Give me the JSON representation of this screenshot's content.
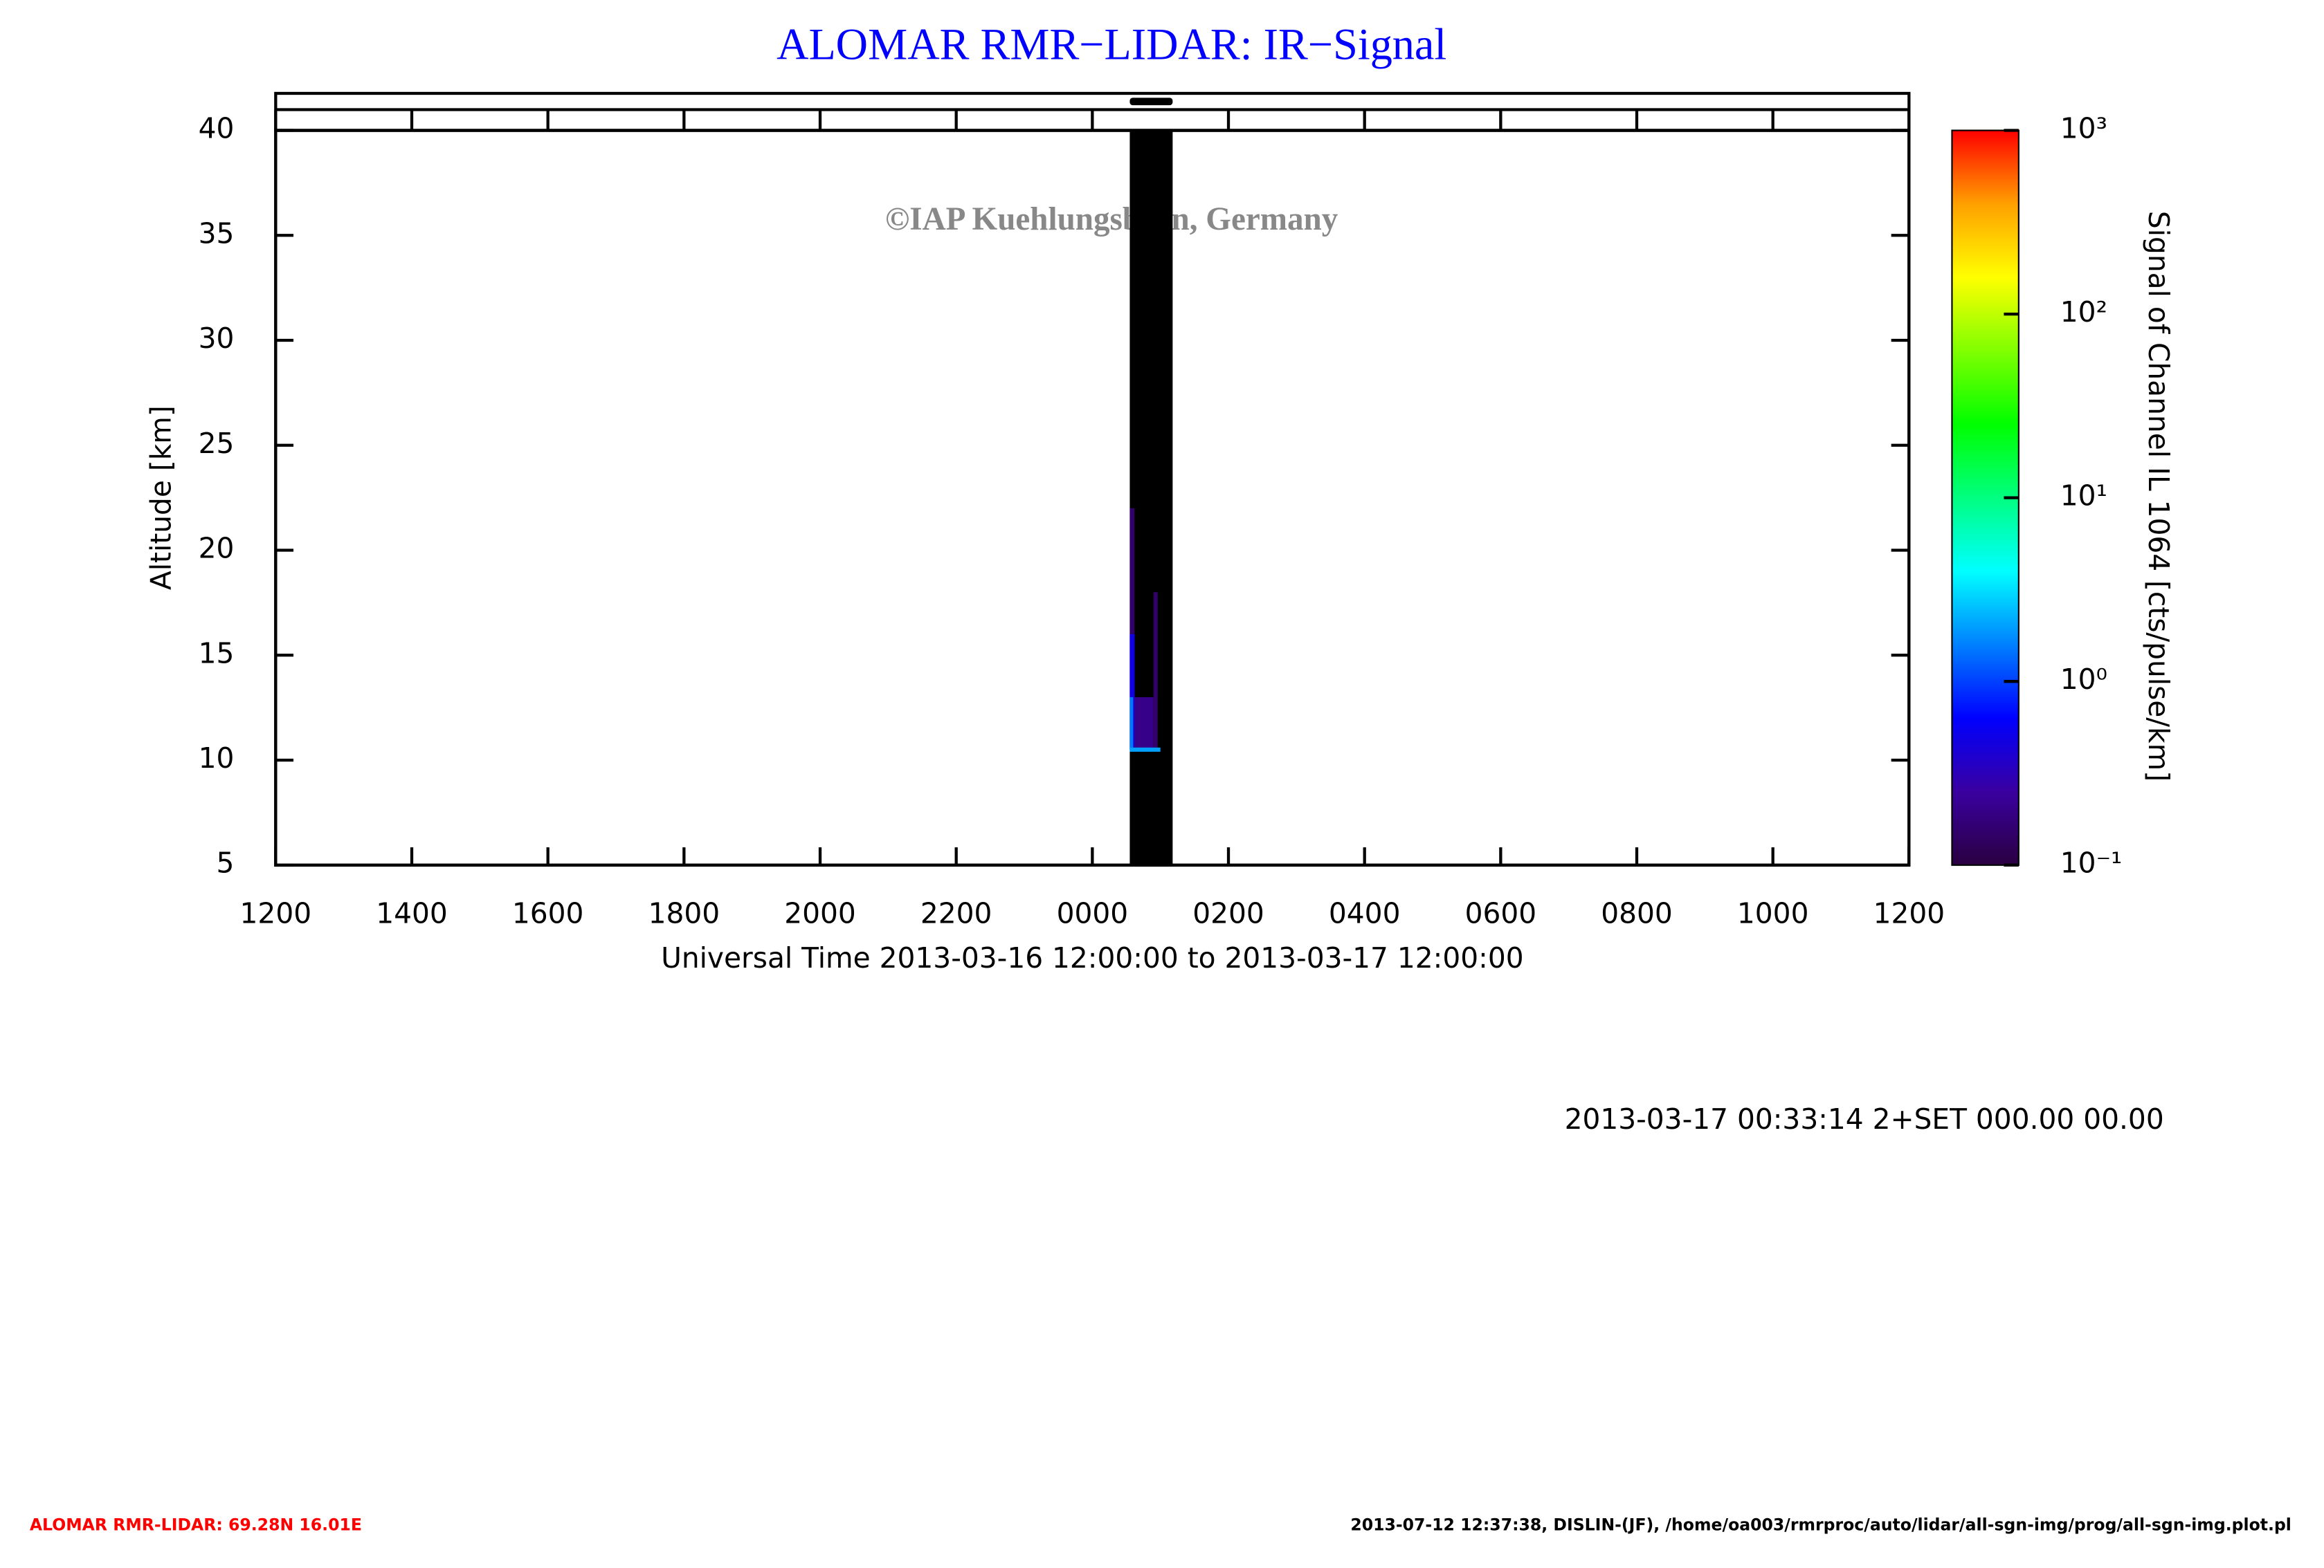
{
  "chart_data": {
    "type": "heatmap",
    "title": "ALOMAR RMR−LIDAR: IR−Signal",
    "watermark": "©IAP Kuehlungsborn, Germany",
    "x_label": "Universal Time 2013-03-16 12:00:00 to 2013-03-17 12:00:00",
    "y_label": "Altitude [km]",
    "xlim": [
      0,
      24
    ],
    "xticks": [
      {
        "value": 0,
        "label": "1200"
      },
      {
        "value": 2,
        "label": "1400"
      },
      {
        "value": 4,
        "label": "1600"
      },
      {
        "value": 6,
        "label": "1800"
      },
      {
        "value": 8,
        "label": "2000"
      },
      {
        "value": 10,
        "label": "2200"
      },
      {
        "value": 12,
        "label": "0000"
      },
      {
        "value": 14,
        "label": "0200"
      },
      {
        "value": 16,
        "label": "0400"
      },
      {
        "value": 18,
        "label": "0600"
      },
      {
        "value": 20,
        "label": "0800"
      },
      {
        "value": 22,
        "label": "1000"
      },
      {
        "value": 24,
        "label": "1200"
      }
    ],
    "ylim": [
      5,
      40
    ],
    "yticks": [
      5,
      10,
      15,
      20,
      25,
      30,
      35,
      40
    ],
    "colorbar": {
      "label": "Signal of Channel IL 1064 [cts/pulse/km]",
      "scale": "log",
      "clim": [
        0.1,
        1000
      ],
      "ticks": [
        {
          "value": 0.1,
          "label": "10⁻¹"
        },
        {
          "value": 1,
          "label": "10⁰"
        },
        {
          "value": 10,
          "label": "10¹"
        },
        {
          "value": 100,
          "label": "10²"
        },
        {
          "value": 1000,
          "label": "10³"
        }
      ],
      "colormap": [
        "#2a0040",
        "#3a00a0",
        "#0000ff",
        "#0080ff",
        "#00ffff",
        "#00ff80",
        "#00ff00",
        "#80ff00",
        "#ffff00",
        "#ffa000",
        "#ff0000"
      ]
    },
    "measurement_window": [
      12.55,
      13.18
    ],
    "window_color": "#000000",
    "cells": [
      {
        "x0": 12.55,
        "x1": 12.62,
        "y0": 10.5,
        "y1": 22,
        "value": 0.15
      },
      {
        "x0": 12.55,
        "x1": 12.62,
        "y0": 10.5,
        "y1": 16,
        "value": 0.5
      },
      {
        "x0": 12.55,
        "x1": 12.6,
        "y0": 10.5,
        "y1": 13,
        "value": 1.5
      },
      {
        "x0": 12.62,
        "x1": 12.9,
        "y0": 10.5,
        "y1": 13,
        "value": 0.2
      },
      {
        "x0": 12.9,
        "x1": 12.96,
        "y0": 10.5,
        "y1": 18,
        "value": 0.15
      },
      {
        "x0": 12.55,
        "x1": 13.0,
        "y0": 10.4,
        "y1": 10.6,
        "value": 2
      }
    ]
  },
  "footer": {
    "timestamp": "2013-03-17 00:33:14 2+SET 000.00 00.00",
    "station": "ALOMAR RMR-LIDAR: 69.28N 16.01E",
    "plot_info": "2013-07-12 12:37:38, DISLIN-(JF), /home/oa003/rmrproc/auto/lidar/all-sgn-img/prog/all-sgn-img.plot.pl"
  }
}
